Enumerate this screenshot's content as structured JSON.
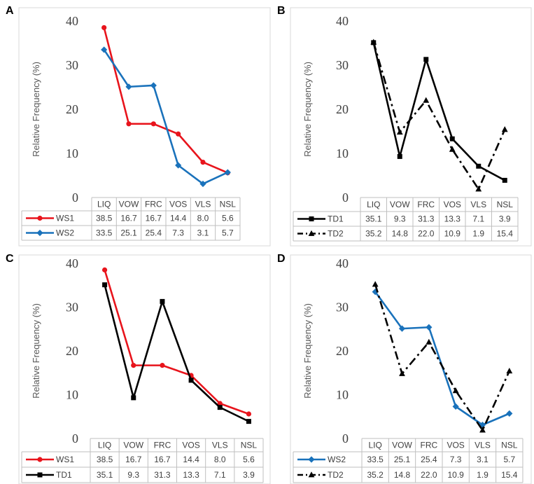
{
  "chart_data": [
    {
      "panel": "A",
      "type": "line",
      "ylabel": "Relative Frequency (%)",
      "ylim": [
        0,
        40
      ],
      "yticks": [
        0,
        10,
        20,
        30,
        40
      ],
      "categories": [
        "LIQ",
        "VOW",
        "FRC",
        "VOS",
        "VLS",
        "NSL"
      ],
      "series": [
        {
          "name": "WS1",
          "values": [
            38.5,
            16.7,
            16.7,
            14.4,
            8.0,
            5.6
          ],
          "values_text": [
            "38.5",
            "16.7",
            "16.7",
            "14.4",
            "8.0",
            "5.6"
          ],
          "color": "#e8141c",
          "marker": "circle",
          "dash": "solid"
        },
        {
          "name": "WS2",
          "values": [
            33.5,
            25.1,
            25.4,
            7.3,
            3.1,
            5.7
          ],
          "values_text": [
            "33.5",
            "25.1",
            "25.4",
            "7.3",
            "3.1",
            "5.7"
          ],
          "color": "#1a72bb",
          "marker": "diamond",
          "dash": "solid"
        }
      ]
    },
    {
      "panel": "B",
      "type": "line",
      "ylabel": "Relative Frequency (%)",
      "ylim": [
        0,
        40
      ],
      "yticks": [
        0,
        10,
        20,
        30,
        40
      ],
      "categories": [
        "LIQ",
        "VOW",
        "FRC",
        "VOS",
        "VLS",
        "NSL"
      ],
      "series": [
        {
          "name": "TD1",
          "values": [
            35.1,
            9.3,
            31.3,
            13.3,
            7.1,
            3.9
          ],
          "values_text": [
            "35.1",
            "9.3",
            "31.3",
            "13.3",
            "7.1",
            "3.9"
          ],
          "color": "#000000",
          "marker": "square",
          "dash": "solid"
        },
        {
          "name": "TD2",
          "values": [
            35.2,
            14.8,
            22.0,
            10.9,
            1.9,
            15.4
          ],
          "values_text": [
            "35.2",
            "14.8",
            "22.0",
            "10.9",
            "1.9",
            "15.4"
          ],
          "color": "#000000",
          "marker": "triangle",
          "dash": "dashdot"
        }
      ]
    },
    {
      "panel": "C",
      "type": "line",
      "ylabel": "Relative Frequency (%)",
      "ylim": [
        0,
        40
      ],
      "yticks": [
        0,
        10,
        20,
        30,
        40
      ],
      "categories": [
        "LIQ",
        "VOW",
        "FRC",
        "VOS",
        "VLS",
        "NSL"
      ],
      "series": [
        {
          "name": "WS1",
          "values": [
            38.5,
            16.7,
            16.7,
            14.4,
            8.0,
            5.6
          ],
          "values_text": [
            "38.5",
            "16.7",
            "16.7",
            "14.4",
            "8.0",
            "5.6"
          ],
          "color": "#e8141c",
          "marker": "circle",
          "dash": "solid"
        },
        {
          "name": "TD1",
          "values": [
            35.1,
            9.3,
            31.3,
            13.3,
            7.1,
            3.9
          ],
          "values_text": [
            "35.1",
            "9.3",
            "31.3",
            "13.3",
            "7.1",
            "3.9"
          ],
          "color": "#000000",
          "marker": "square",
          "dash": "solid"
        }
      ]
    },
    {
      "panel": "D",
      "type": "line",
      "ylabel": "Relative Frequency (%)",
      "ylim": [
        0,
        40
      ],
      "yticks": [
        0,
        10,
        20,
        30,
        40
      ],
      "categories": [
        "LIQ",
        "VOW",
        "FRC",
        "VOS",
        "VLS",
        "NSL"
      ],
      "series": [
        {
          "name": "WS2",
          "values": [
            33.5,
            25.1,
            25.4,
            7.3,
            3.1,
            5.7
          ],
          "values_text": [
            "33.5",
            "25.1",
            "25.4",
            "7.3",
            "3.1",
            "5.7"
          ],
          "color": "#1a72bb",
          "marker": "diamond",
          "dash": "solid"
        },
        {
          "name": "TD2",
          "values": [
            35.2,
            14.8,
            22.0,
            10.9,
            1.9,
            15.4
          ],
          "values_text": [
            "35.2",
            "14.8",
            "22.0",
            "10.9",
            "1.9",
            "15.4"
          ],
          "color": "#000000",
          "marker": "triangle",
          "dash": "dashdot"
        }
      ]
    }
  ]
}
